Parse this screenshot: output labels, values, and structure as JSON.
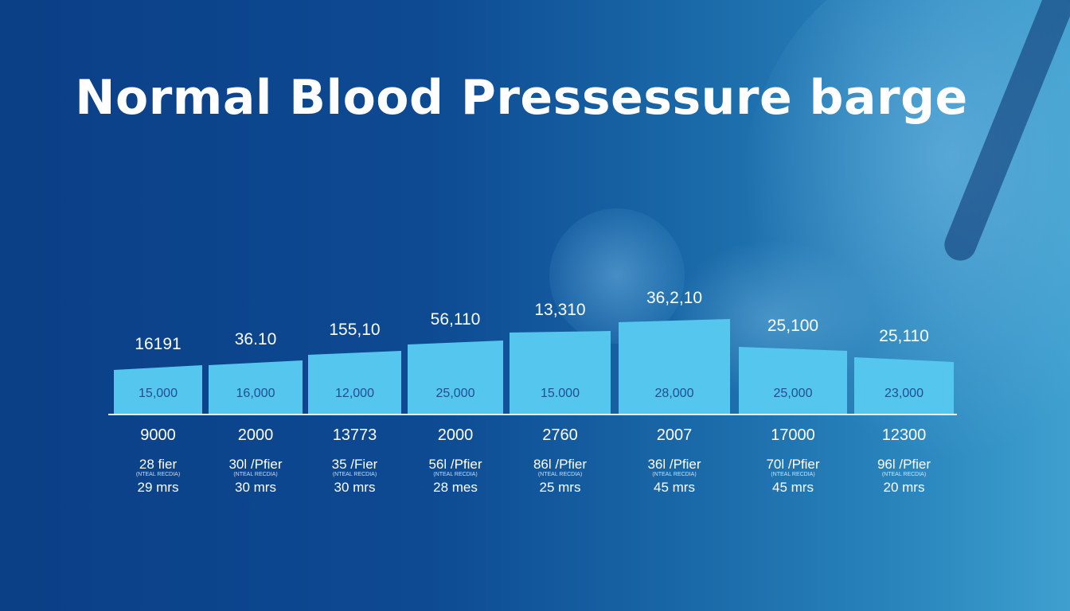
{
  "title": "Normal Blood Pressessure barge",
  "colors": {
    "bar": "#55c6ee",
    "bar_inner_text": "#1f4f8f",
    "text": "#ffffff",
    "axis": "#e6f2fb"
  },
  "chart_data": {
    "type": "bar",
    "title": "Normal Blood Pressessure barge",
    "categories": [
      "9000",
      "2000",
      "13773",
      "2000",
      "2760",
      "2007",
      "17000",
      "12300"
    ],
    "top_labels": [
      "16191",
      "36.10",
      "155,10",
      "56,110",
      "13,310",
      "36,2,10",
      "25,100",
      "25,110"
    ],
    "values": [
      15000,
      16000,
      12000,
      25000,
      15000,
      28000,
      25000,
      23000
    ],
    "value_labels": [
      "15,000",
      "16,000",
      "12,000",
      "25,000",
      "15.000",
      "28,000",
      "25,000",
      "23,000"
    ],
    "bar_tops_left": [
      56,
      62,
      75,
      88,
      103,
      116,
      85,
      72
    ],
    "bar_tops_right": [
      62,
      68,
      80,
      93,
      105,
      120,
      80,
      66
    ],
    "ylim": [
      0,
      130
    ],
    "sublabels": [
      "28 fier",
      "30l /Pfier",
      "35 /Fier",
      "56l /Pfier",
      "86l /Pfier",
      "36l /Pfier",
      "70l /Pfier",
      "96l /Pfier"
    ],
    "tiny_labels": [
      "(NTEAL RECDIA)",
      "(NTEAL RECDIA)",
      "(NTEAL RECDIA)",
      "(NTEAL RECDIA)",
      "(NTEAL RECDIA)",
      "(NTEAL RECDIA)",
      "(NTEAL RECDIA)",
      "(NTEAL RECDIA)"
    ],
    "durations": [
      "29 mrs",
      "30 mrs",
      "30 mrs",
      "28 mes",
      "25 mrs",
      "45 mrs",
      "45 mrs",
      "20 mrs"
    ],
    "xlabel": "",
    "ylabel": "",
    "grid": false
  }
}
